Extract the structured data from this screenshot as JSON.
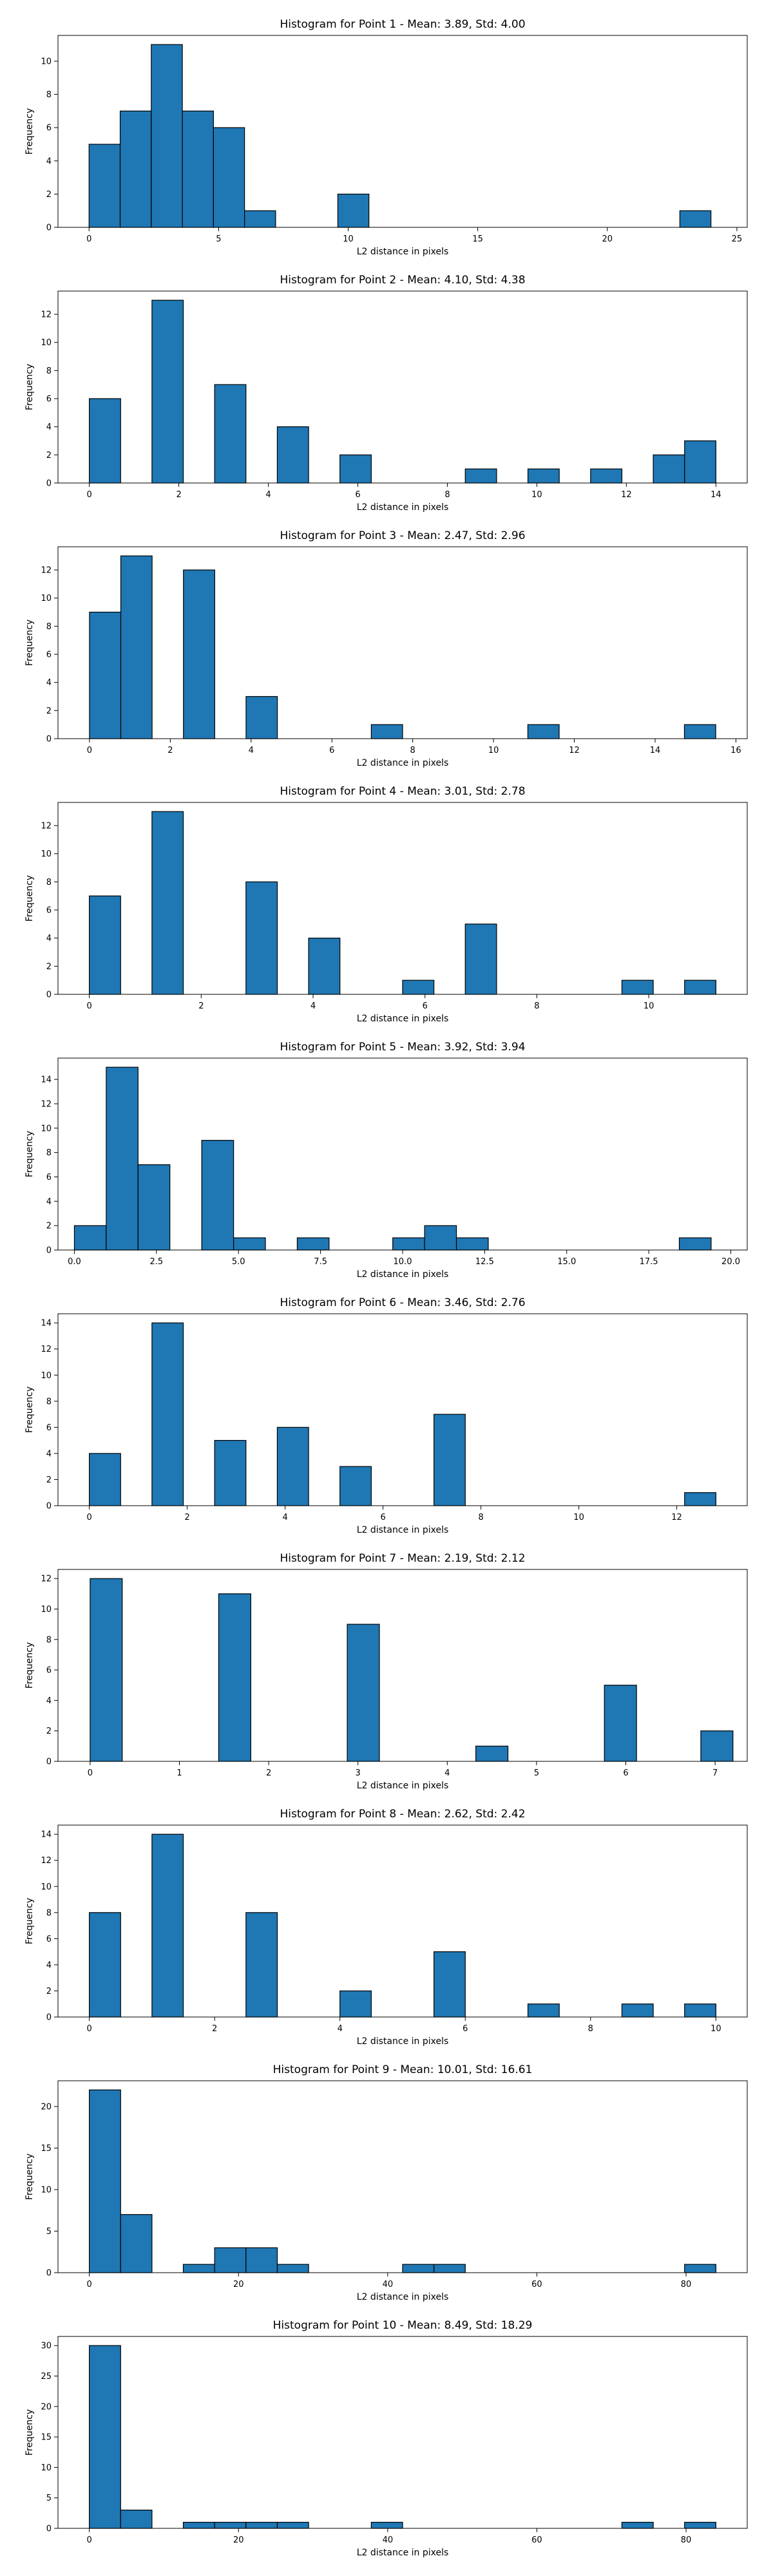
{
  "figure": {
    "background": "#ffffff",
    "bar_color": "#1f77b4",
    "edge_color": "#000000"
  },
  "chart_data": [
    {
      "type": "bar",
      "title": "Histogram for Point 1 - Mean: 3.89, Std: 4.00",
      "xlabel": "L2 distance in pixels",
      "ylabel": "Frequency",
      "xlim": [
        -1.2,
        25.4
      ],
      "ylim": [
        0,
        11.55
      ],
      "xticks": [
        0,
        5,
        10,
        15,
        20,
        25
      ],
      "xtick_labels": [
        "0",
        "5",
        "10",
        "15",
        "20",
        "25"
      ],
      "yticks": [
        0,
        2,
        4,
        6,
        8,
        10
      ],
      "ytick_labels": [
        "0",
        "2",
        "4",
        "6",
        "8",
        "10"
      ],
      "grid": false,
      "bins": [
        {
          "x0": 0.0,
          "x1": 1.2,
          "count": 5
        },
        {
          "x0": 1.2,
          "x1": 2.4,
          "count": 7
        },
        {
          "x0": 2.4,
          "x1": 3.6,
          "count": 11
        },
        {
          "x0": 3.6,
          "x1": 4.8,
          "count": 7
        },
        {
          "x0": 4.8,
          "x1": 6.0,
          "count": 6
        },
        {
          "x0": 6.0,
          "x1": 7.2,
          "count": 1
        },
        {
          "x0": 9.6,
          "x1": 10.8,
          "count": 2
        },
        {
          "x0": 22.8,
          "x1": 24.0,
          "count": 1
        }
      ]
    },
    {
      "type": "bar",
      "title": "Histogram for Point 2 - Mean: 4.10, Std: 4.38",
      "xlabel": "L2 distance in pixels",
      "ylabel": "Frequency",
      "xlim": [
        -0.7,
        14.7
      ],
      "ylim": [
        0,
        13.65
      ],
      "xticks": [
        0,
        2,
        4,
        6,
        8,
        10,
        12,
        14
      ],
      "xtick_labels": [
        "0",
        "2",
        "4",
        "6",
        "8",
        "10",
        "12",
        "14"
      ],
      "yticks": [
        0,
        2,
        4,
        6,
        8,
        10,
        12
      ],
      "ytick_labels": [
        "0",
        "2",
        "4",
        "6",
        "8",
        "10",
        "12"
      ],
      "grid": false,
      "bins": [
        {
          "x0": 0.0,
          "x1": 0.7,
          "count": 6
        },
        {
          "x0": 1.4,
          "x1": 2.1,
          "count": 13
        },
        {
          "x0": 2.8,
          "x1": 3.5,
          "count": 7
        },
        {
          "x0": 4.2,
          "x1": 4.9,
          "count": 4
        },
        {
          "x0": 5.6,
          "x1": 6.3,
          "count": 2
        },
        {
          "x0": 8.4,
          "x1": 9.1,
          "count": 1
        },
        {
          "x0": 9.8,
          "x1": 10.5,
          "count": 1
        },
        {
          "x0": 11.2,
          "x1": 11.9,
          "count": 1
        },
        {
          "x0": 12.6,
          "x1": 13.3,
          "count": 2
        },
        {
          "x0": 13.3,
          "x1": 14.0,
          "count": 3
        }
      ]
    },
    {
      "type": "bar",
      "title": "Histogram for Point 3 - Mean: 2.47, Std: 2.96",
      "xlabel": "L2 distance in pixels",
      "ylabel": "Frequency",
      "xlim": [
        -0.78,
        16.28
      ],
      "ylim": [
        0,
        13.65
      ],
      "xticks": [
        0,
        2,
        4,
        6,
        8,
        10,
        12,
        14,
        16
      ],
      "xtick_labels": [
        "0",
        "2",
        "4",
        "6",
        "8",
        "10",
        "12",
        "14",
        "16"
      ],
      "yticks": [
        0,
        2,
        4,
        6,
        8,
        10,
        12
      ],
      "ytick_labels": [
        "0",
        "2",
        "4",
        "6",
        "8",
        "10",
        "12"
      ],
      "grid": false,
      "bins": [
        {
          "x0": 0.0,
          "x1": 0.775,
          "count": 9
        },
        {
          "x0": 0.775,
          "x1": 1.55,
          "count": 13
        },
        {
          "x0": 2.325,
          "x1": 3.1,
          "count": 12
        },
        {
          "x0": 3.875,
          "x1": 4.65,
          "count": 3
        },
        {
          "x0": 6.975,
          "x1": 7.75,
          "count": 1
        },
        {
          "x0": 10.85,
          "x1": 11.625,
          "count": 1
        },
        {
          "x0": 14.725,
          "x1": 15.5,
          "count": 1
        }
      ]
    },
    {
      "type": "bar",
      "title": "Histogram for Point 4 - Mean: 3.01, Std: 2.78",
      "xlabel": "L2 distance in pixels",
      "ylabel": "Frequency",
      "xlim": [
        -0.56,
        11.76
      ],
      "ylim": [
        0,
        13.65
      ],
      "xticks": [
        0,
        2,
        4,
        6,
        8,
        10
      ],
      "xtick_labels": [
        "0",
        "2",
        "4",
        "6",
        "8",
        "10"
      ],
      "yticks": [
        0,
        2,
        4,
        6,
        8,
        10,
        12
      ],
      "ytick_labels": [
        "0",
        "2",
        "4",
        "6",
        "8",
        "10",
        "12"
      ],
      "grid": false,
      "bins": [
        {
          "x0": 0.0,
          "x1": 0.56,
          "count": 7
        },
        {
          "x0": 1.12,
          "x1": 1.68,
          "count": 13
        },
        {
          "x0": 2.8,
          "x1": 3.36,
          "count": 8
        },
        {
          "x0": 3.92,
          "x1": 4.48,
          "count": 4
        },
        {
          "x0": 5.6,
          "x1": 6.16,
          "count": 1
        },
        {
          "x0": 6.72,
          "x1": 7.28,
          "count": 5
        },
        {
          "x0": 9.52,
          "x1": 10.08,
          "count": 1
        },
        {
          "x0": 10.64,
          "x1": 11.2,
          "count": 1
        }
      ]
    },
    {
      "type": "bar",
      "title": "Histogram for Point 5 - Mean: 3.92, Std: 3.94",
      "xlabel": "L2 distance in pixels",
      "ylabel": "Frequency",
      "xlim": [
        -0.5,
        20.5
      ],
      "ylim": [
        0,
        15.75
      ],
      "xticks": [
        0.0,
        2.5,
        5.0,
        7.5,
        10.0,
        12.5,
        15.0,
        17.5,
        20.0
      ],
      "xtick_labels": [
        "0.0",
        "2.5",
        "5.0",
        "7.5",
        "10.0",
        "12.5",
        "15.0",
        "17.5",
        "20.0"
      ],
      "yticks": [
        0,
        2,
        4,
        6,
        8,
        10,
        12,
        14
      ],
      "ytick_labels": [
        "0",
        "2",
        "4",
        "6",
        "8",
        "10",
        "12",
        "14"
      ],
      "grid": false,
      "bins": [
        {
          "x0": 0.0,
          "x1": 0.97,
          "count": 2
        },
        {
          "x0": 0.97,
          "x1": 1.94,
          "count": 15
        },
        {
          "x0": 1.94,
          "x1": 2.91,
          "count": 7
        },
        {
          "x0": 3.88,
          "x1": 4.85,
          "count": 9
        },
        {
          "x0": 4.85,
          "x1": 5.82,
          "count": 1
        },
        {
          "x0": 6.79,
          "x1": 7.76,
          "count": 1
        },
        {
          "x0": 9.7,
          "x1": 10.67,
          "count": 1
        },
        {
          "x0": 10.67,
          "x1": 11.64,
          "count": 2
        },
        {
          "x0": 11.64,
          "x1": 12.61,
          "count": 1
        },
        {
          "x0": 18.43,
          "x1": 19.4,
          "count": 1
        }
      ]
    },
    {
      "type": "bar",
      "title": "Histogram for Point 6 - Mean: 3.46, Std: 2.76",
      "xlabel": "L2 distance in pixels",
      "ylabel": "Frequency",
      "xlim": [
        -0.64,
        13.44
      ],
      "ylim": [
        0,
        14.7
      ],
      "xticks": [
        0,
        2,
        4,
        6,
        8,
        10,
        12
      ],
      "xtick_labels": [
        "0",
        "2",
        "4",
        "6",
        "8",
        "10",
        "12"
      ],
      "yticks": [
        0,
        2,
        4,
        6,
        8,
        10,
        12,
        14
      ],
      "ytick_labels": [
        "0",
        "2",
        "4",
        "6",
        "8",
        "10",
        "12",
        "14"
      ],
      "grid": false,
      "bins": [
        {
          "x0": 0.0,
          "x1": 0.64,
          "count": 4
        },
        {
          "x0": 1.28,
          "x1": 1.92,
          "count": 14
        },
        {
          "x0": 2.56,
          "x1": 3.2,
          "count": 5
        },
        {
          "x0": 3.84,
          "x1": 4.48,
          "count": 6
        },
        {
          "x0": 5.12,
          "x1": 5.76,
          "count": 3
        },
        {
          "x0": 7.04,
          "x1": 7.68,
          "count": 7
        },
        {
          "x0": 12.16,
          "x1": 12.8,
          "count": 1
        }
      ]
    },
    {
      "type": "bar",
      "title": "Histogram for Point 7 - Mean: 2.19, Std: 2.12",
      "xlabel": "L2 distance in pixels",
      "ylabel": "Frequency",
      "xlim": [
        -0.36,
        7.36
      ],
      "ylim": [
        0,
        12.6
      ],
      "xticks": [
        0,
        1,
        2,
        3,
        4,
        5,
        6,
        7
      ],
      "xtick_labels": [
        "0",
        "1",
        "2",
        "3",
        "4",
        "5",
        "6",
        "7"
      ],
      "yticks": [
        0,
        2,
        4,
        6,
        8,
        10,
        12
      ],
      "ytick_labels": [
        "0",
        "2",
        "4",
        "6",
        "8",
        "10",
        "12"
      ],
      "grid": false,
      "bins": [
        {
          "x0": 0.0,
          "x1": 0.36,
          "count": 12
        },
        {
          "x0": 1.44,
          "x1": 1.8,
          "count": 11
        },
        {
          "x0": 2.88,
          "x1": 3.24,
          "count": 9
        },
        {
          "x0": 4.32,
          "x1": 4.68,
          "count": 1
        },
        {
          "x0": 5.76,
          "x1": 6.12,
          "count": 5
        },
        {
          "x0": 6.84,
          "x1": 7.2,
          "count": 2
        }
      ]
    },
    {
      "type": "bar",
      "title": "Histogram for Point 8 - Mean: 2.62, Std: 2.42",
      "xlabel": "L2 distance in pixels",
      "ylabel": "Frequency",
      "xlim": [
        -0.5,
        10.5
      ],
      "ylim": [
        0,
        14.7
      ],
      "xticks": [
        0,
        2,
        4,
        6,
        8,
        10
      ],
      "xtick_labels": [
        "0",
        "2",
        "4",
        "6",
        "8",
        "10"
      ],
      "yticks": [
        0,
        2,
        4,
        6,
        8,
        10,
        12,
        14
      ],
      "ytick_labels": [
        "0",
        "2",
        "4",
        "6",
        "8",
        "10",
        "12",
        "14"
      ],
      "grid": false,
      "bins": [
        {
          "x0": 0.0,
          "x1": 0.5,
          "count": 8
        },
        {
          "x0": 1.0,
          "x1": 1.5,
          "count": 14
        },
        {
          "x0": 2.5,
          "x1": 3.0,
          "count": 8
        },
        {
          "x0": 4.0,
          "x1": 4.5,
          "count": 2
        },
        {
          "x0": 5.5,
          "x1": 6.0,
          "count": 5
        },
        {
          "x0": 7.0,
          "x1": 7.5,
          "count": 1
        },
        {
          "x0": 8.5,
          "x1": 9.0,
          "count": 1
        },
        {
          "x0": 9.5,
          "x1": 10.0,
          "count": 1
        }
      ]
    },
    {
      "type": "bar",
      "title": "Histogram for Point 9 - Mean: 10.01, Std: 16.61",
      "xlabel": "L2 distance in pixels",
      "ylabel": "Frequency",
      "xlim": [
        -4.2,
        88.2
      ],
      "ylim": [
        0,
        23.1
      ],
      "xticks": [
        0,
        20,
        40,
        60,
        80
      ],
      "xtick_labels": [
        "0",
        "20",
        "40",
        "60",
        "80"
      ],
      "yticks": [
        0,
        5,
        10,
        15,
        20
      ],
      "ytick_labels": [
        "0",
        "5",
        "10",
        "15",
        "20"
      ],
      "grid": false,
      "bins": [
        {
          "x0": 0.0,
          "x1": 4.2,
          "count": 22
        },
        {
          "x0": 4.2,
          "x1": 8.4,
          "count": 7
        },
        {
          "x0": 12.6,
          "x1": 16.8,
          "count": 1
        },
        {
          "x0": 16.8,
          "x1": 21.0,
          "count": 3
        },
        {
          "x0": 21.0,
          "x1": 25.2,
          "count": 3
        },
        {
          "x0": 25.2,
          "x1": 29.4,
          "count": 1
        },
        {
          "x0": 42.0,
          "x1": 46.2,
          "count": 1
        },
        {
          "x0": 46.2,
          "x1": 50.4,
          "count": 1
        },
        {
          "x0": 79.8,
          "x1": 84.0,
          "count": 1
        }
      ]
    },
    {
      "type": "bar",
      "title": "Histogram for Point 10 - Mean: 8.49, Std: 18.29",
      "xlabel": "L2 distance in pixels",
      "ylabel": "Frequency",
      "xlim": [
        -4.2,
        88.2
      ],
      "ylim": [
        0,
        31.5
      ],
      "xticks": [
        0,
        20,
        40,
        60,
        80
      ],
      "xtick_labels": [
        "0",
        "20",
        "40",
        "60",
        "80"
      ],
      "yticks": [
        0,
        5,
        10,
        15,
        20,
        25,
        30
      ],
      "ytick_labels": [
        "0",
        "5",
        "10",
        "15",
        "20",
        "25",
        "30"
      ],
      "grid": false,
      "bins": [
        {
          "x0": 0.0,
          "x1": 4.2,
          "count": 30
        },
        {
          "x0": 4.2,
          "x1": 8.4,
          "count": 3
        },
        {
          "x0": 12.6,
          "x1": 16.8,
          "count": 1
        },
        {
          "x0": 16.8,
          "x1": 21.0,
          "count": 1
        },
        {
          "x0": 21.0,
          "x1": 25.2,
          "count": 1
        },
        {
          "x0": 25.2,
          "x1": 29.4,
          "count": 1
        },
        {
          "x0": 37.8,
          "x1": 42.0,
          "count": 1
        },
        {
          "x0": 71.4,
          "x1": 75.6,
          "count": 1
        },
        {
          "x0": 79.8,
          "x1": 84.0,
          "count": 1
        }
      ]
    }
  ]
}
